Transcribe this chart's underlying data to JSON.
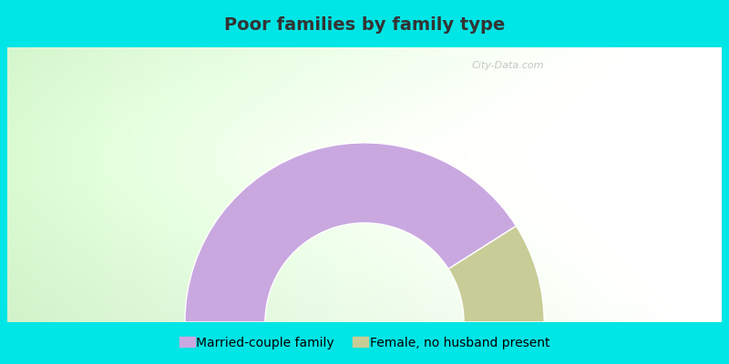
{
  "title": "Poor families by family type",
  "title_fontsize": 14,
  "segments": [
    {
      "label": "Married-couple family",
      "value": 82,
      "color": "#c9a8e0"
    },
    {
      "label": "Female, no husband present",
      "value": 18,
      "color": "#c8cc96"
    }
  ],
  "background_color_outer": "#00e5e5",
  "watermark_text": "City-Data.com",
  "legend_fontsize": 10,
  "title_color": "#333333"
}
